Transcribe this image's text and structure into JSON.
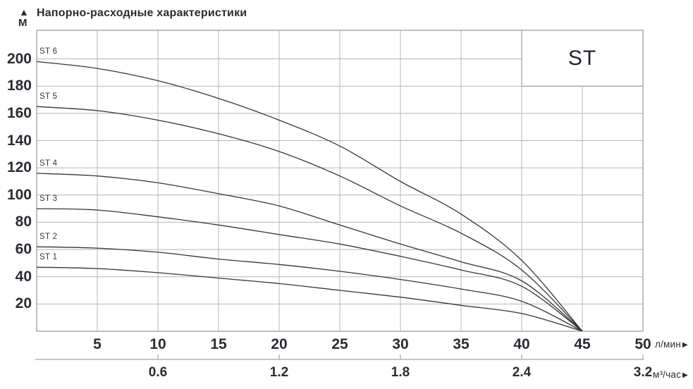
{
  "header": {
    "y_axis_arrow": "▲",
    "y_axis_unit": "М",
    "title": "Напорно-расходные характеристики"
  },
  "legend": {
    "label": "ST"
  },
  "units": {
    "flow_lpm": "л/мин",
    "flow_m3h": "м³/час",
    "arrow": "▶"
  },
  "colors": {
    "curve": "#35363c",
    "grid": "#b5b5b5",
    "border": "#979797",
    "secondary_axis": "#a3a3a3",
    "text": "#2b2c33"
  },
  "chart_data": {
    "type": "line",
    "title": "Напорно-расходные характеристики",
    "ylabel": "М",
    "xlabel": "л/мин",
    "x2label": "м³/час",
    "xlim": [
      0,
      50
    ],
    "ylim": [
      0,
      221
    ],
    "grid": true,
    "x_grid_step": 5,
    "y_grid_step": 20,
    "x_ticks": [
      5,
      10,
      15,
      20,
      25,
      30,
      35,
      40,
      45,
      50
    ],
    "y_ticks": [
      20,
      40,
      60,
      80,
      100,
      120,
      140,
      160,
      180,
      200
    ],
    "x2_ticks": [
      {
        "label": "0.6",
        "x": 10
      },
      {
        "label": "1.2",
        "x": 20
      },
      {
        "label": "1.8",
        "x": 30
      },
      {
        "label": "2.4",
        "x": 40
      },
      {
        "label": "3.2",
        "x": 50
      }
    ],
    "legend_box": {
      "label": "ST",
      "x_range": [
        40,
        50
      ],
      "y_range": [
        180,
        221
      ]
    },
    "series": [
      {
        "name": "ST 6",
        "points": [
          [
            0,
            198
          ],
          [
            5,
            193
          ],
          [
            10,
            184
          ],
          [
            15,
            171
          ],
          [
            20,
            155
          ],
          [
            25,
            136
          ],
          [
            30,
            110
          ],
          [
            35,
            86
          ],
          [
            40,
            52
          ],
          [
            45,
            0
          ]
        ]
      },
      {
        "name": "ST 5",
        "points": [
          [
            0,
            165
          ],
          [
            5,
            162
          ],
          [
            10,
            155
          ],
          [
            15,
            145
          ],
          [
            20,
            132
          ],
          [
            25,
            114
          ],
          [
            30,
            92
          ],
          [
            35,
            72
          ],
          [
            40,
            45
          ],
          [
            45,
            0
          ]
        ]
      },
      {
        "name": "ST 4",
        "points": [
          [
            0,
            116
          ],
          [
            5,
            114
          ],
          [
            10,
            109
          ],
          [
            15,
            101
          ],
          [
            20,
            92
          ],
          [
            25,
            78
          ],
          [
            30,
            64
          ],
          [
            35,
            51
          ],
          [
            40,
            37
          ],
          [
            45,
            0
          ]
        ]
      },
      {
        "name": "ST 3",
        "points": [
          [
            0,
            90
          ],
          [
            5,
            89
          ],
          [
            10,
            84
          ],
          [
            15,
            78
          ],
          [
            20,
            71
          ],
          [
            25,
            64
          ],
          [
            30,
            55
          ],
          [
            35,
            45
          ],
          [
            40,
            33
          ],
          [
            45,
            0
          ]
        ]
      },
      {
        "name": "ST 2",
        "points": [
          [
            0,
            62
          ],
          [
            5,
            61
          ],
          [
            10,
            58
          ],
          [
            15,
            53
          ],
          [
            20,
            49
          ],
          [
            25,
            44
          ],
          [
            30,
            38
          ],
          [
            35,
            31
          ],
          [
            40,
            22
          ],
          [
            45,
            0
          ]
        ]
      },
      {
        "name": "ST 1",
        "points": [
          [
            0,
            47
          ],
          [
            5,
            46
          ],
          [
            10,
            43
          ],
          [
            15,
            39
          ],
          [
            20,
            35
          ],
          [
            25,
            30
          ],
          [
            30,
            25
          ],
          [
            35,
            19
          ],
          [
            40,
            13
          ],
          [
            45,
            0
          ]
        ]
      }
    ]
  }
}
